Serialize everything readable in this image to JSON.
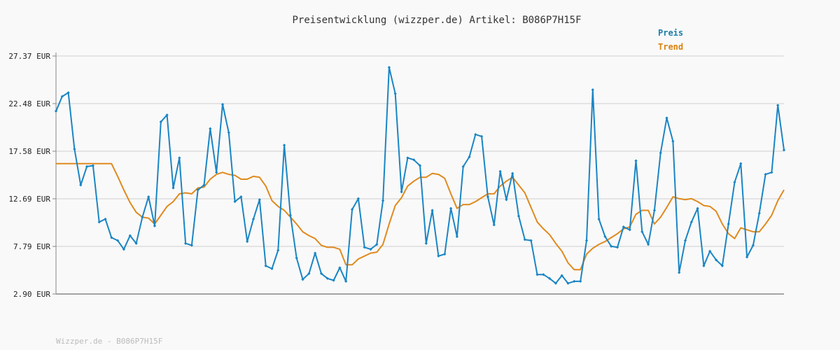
{
  "footer": "Wizzper.de - B086P7H15F",
  "colors": {
    "price": "#1a85c4",
    "trend": "#e08a1e",
    "grid": "#dddddd",
    "axis": "#888888",
    "legend_price": "#1a7fa8",
    "legend_trend": "#d9820f"
  },
  "chart_data": {
    "type": "line",
    "title": "Preisentwicklung (wizzper.de) Artikel: B086P7H15F",
    "y_ticks": [
      "27.37 EUR",
      "22.48 EUR",
      "17.58 EUR",
      "12.69 EUR",
      "7.79 EUR",
      "2.90 EUR"
    ],
    "ylim": [
      2.9,
      27.37
    ],
    "grid": true,
    "legend_position": "top-right",
    "series": [
      {
        "name": "Preis",
        "values": [
          21.7,
          23.2,
          23.6,
          17.8,
          14.1,
          16.0,
          16.1,
          10.3,
          10.6,
          8.7,
          8.4,
          7.5,
          8.9,
          8.1,
          10.8,
          12.9,
          9.9,
          20.6,
          21.3,
          13.8,
          16.9,
          8.1,
          7.9,
          13.6,
          14.1,
          19.9,
          15.4,
          22.4,
          19.5,
          12.4,
          12.9,
          8.3,
          10.6,
          12.6,
          5.8,
          5.5,
          7.4,
          18.2,
          11.0,
          6.6,
          4.4,
          5.0,
          7.1,
          5.0,
          4.5,
          4.3,
          5.6,
          4.2,
          11.6,
          12.7,
          7.7,
          7.5,
          8.0,
          12.5,
          26.2,
          23.5,
          13.4,
          16.9,
          16.7,
          16.1,
          8.1,
          11.5,
          6.8,
          7.0,
          11.7,
          8.8,
          16.0,
          17.0,
          19.3,
          19.1,
          12.9,
          10.0,
          15.5,
          12.6,
          15.3,
          10.9,
          8.5,
          8.4,
          4.9,
          4.9,
          4.5,
          4.0,
          4.8,
          4.0,
          4.2,
          4.2,
          8.4,
          23.9,
          10.6,
          8.8,
          7.8,
          7.7,
          9.8,
          9.5,
          16.6,
          9.3,
          8.0,
          11.5,
          17.4,
          21.0,
          18.6,
          5.1,
          8.4,
          10.3,
          11.7,
          5.8,
          7.3,
          6.4,
          5.8,
          10.1,
          14.4,
          16.3,
          6.7,
          7.9,
          11.2,
          15.2,
          15.4,
          22.3,
          17.7
        ]
      },
      {
        "name": "Trend",
        "values": [
          16.3,
          16.3,
          16.3,
          16.3,
          16.3,
          16.3,
          16.3,
          16.3,
          16.3,
          16.3,
          15.0,
          13.6,
          12.3,
          11.3,
          10.8,
          10.7,
          10.1,
          11.0,
          11.9,
          12.4,
          13.2,
          13.3,
          13.2,
          13.8,
          13.9,
          14.7,
          15.2,
          15.4,
          15.2,
          15.1,
          14.7,
          14.7,
          15.0,
          14.9,
          14.0,
          12.5,
          11.9,
          11.5,
          10.8,
          10.1,
          9.3,
          8.9,
          8.6,
          7.9,
          7.7,
          7.7,
          7.5,
          5.9,
          5.9,
          6.5,
          6.8,
          7.1,
          7.2,
          8.0,
          10.1,
          12.0,
          12.8,
          14.0,
          14.5,
          14.9,
          14.9,
          15.3,
          15.2,
          14.8,
          13.2,
          11.7,
          12.1,
          12.1,
          12.4,
          12.8,
          13.2,
          13.2,
          14.0,
          14.5,
          14.9,
          14.1,
          13.3,
          11.8,
          10.3,
          9.6,
          9.0,
          8.1,
          7.3,
          6.1,
          5.4,
          5.4,
          7.0,
          7.6,
          8.0,
          8.3,
          8.7,
          9.1,
          9.6,
          9.8,
          11.1,
          11.5,
          11.5,
          10.1,
          10.8,
          11.8,
          12.9,
          12.7,
          12.6,
          12.7,
          12.4,
          12.0,
          11.9,
          11.4,
          10.1,
          9.1,
          8.6,
          9.7,
          9.5,
          9.3,
          9.3,
          10.1,
          11.0,
          12.5,
          13.6
        ]
      }
    ]
  }
}
